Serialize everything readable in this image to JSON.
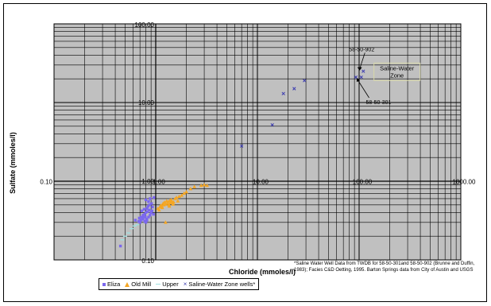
{
  "chart_data": {
    "type": "scatter",
    "xlabel": "Chloride (mmoles/l)",
    "ylabel": "Sulfate (mmoles/l)",
    "xscale": "log",
    "yscale": "log",
    "xlim": [
      0.1,
      1000
    ],
    "ylim": [
      0.1,
      100
    ],
    "grid": true,
    "legend_position": "bottom",
    "x_ticks": [
      "0.10",
      "1.00",
      "10.00",
      "100.00",
      "1000.00"
    ],
    "y_ticks": [
      "0.10",
      "1.00",
      "10.00",
      "100.00"
    ],
    "series": [
      {
        "name": "Eliza",
        "marker": "square",
        "color": "#7b68ee",
        "x": [
          0.45,
          0.63,
          0.68,
          0.7,
          0.72,
          0.75,
          0.78,
          0.8,
          0.82,
          0.74,
          0.76,
          0.79,
          0.81,
          0.85,
          0.88,
          0.9,
          0.92,
          0.95,
          0.78,
          0.8,
          0.83,
          0.86,
          0.72,
          0.69,
          0.75,
          0.82,
          0.84,
          0.87,
          0.91,
          0.93,
          0.77,
          0.73,
          0.85,
          0.8,
          0.88,
          0.96
        ],
        "y": [
          0.15,
          0.32,
          0.31,
          0.3,
          0.32,
          0.33,
          0.31,
          0.3,
          0.32,
          0.34,
          0.36,
          0.35,
          0.33,
          0.35,
          0.37,
          0.4,
          0.42,
          0.38,
          0.38,
          0.4,
          0.41,
          0.43,
          0.35,
          0.34,
          0.37,
          0.45,
          0.48,
          0.5,
          0.52,
          0.47,
          0.44,
          0.42,
          0.55,
          0.58,
          0.6,
          0.62
        ]
      },
      {
        "name": "Old Mill",
        "marker": "triangle",
        "color": "#f5a623",
        "x": [
          1.05,
          1.1,
          1.15,
          1.2,
          1.25,
          1.3,
          1.35,
          1.4,
          1.45,
          1.5,
          1.12,
          1.18,
          1.22,
          1.28,
          1.33,
          1.38,
          1.42,
          1.55,
          1.6,
          1.7,
          1.8,
          1.9,
          2.0,
          2.2,
          2.4,
          2.8,
          3.0,
          3.2,
          1.25,
          1.08,
          1.16,
          1.36,
          1.48,
          1.65
        ],
        "y": [
          0.45,
          0.47,
          0.48,
          0.5,
          0.51,
          0.52,
          0.5,
          0.53,
          0.55,
          0.54,
          0.49,
          0.52,
          0.54,
          0.56,
          0.55,
          0.57,
          0.58,
          0.6,
          0.62,
          0.64,
          0.66,
          0.7,
          0.73,
          0.8,
          0.85,
          0.88,
          0.9,
          0.88,
          0.3,
          0.43,
          0.46,
          0.48,
          0.51,
          0.56
        ]
      },
      {
        "name": "Upper",
        "marker": "dash",
        "color": "#9fe0e0",
        "x": [
          0.47,
          0.5,
          0.54,
          0.58,
          0.62,
          0.66
        ],
        "y": [
          0.18,
          0.2,
          0.22,
          0.25,
          0.27,
          0.28
        ]
      },
      {
        "name": "Saline-Water Zone wells*",
        "marker": "x",
        "color": "#3b3bb0",
        "x": [
          7.0,
          14.0,
          18.0,
          23.0,
          29.0,
          93.0,
          105.0,
          110.0
        ],
        "y": [
          2.8,
          5.2,
          13.0,
          15.0,
          19.0,
          21.0,
          21.0,
          25.0
        ]
      }
    ],
    "annotations": [
      {
        "text": "58-50-902",
        "x": 110,
        "y": 45
      },
      {
        "text": "Saline-Water Zone",
        "x": 180,
        "y": 24
      },
      {
        "text": "58-50-301",
        "x": 150,
        "y": 10
      }
    ],
    "footnote": "*Saline Water Well Data from TWDB for 58-50-301and 58-50-902 (Brunne and Duffin, 1983); Facies C&D Oetting, 1995. Barton Springs data from City of Austin and USGS"
  }
}
